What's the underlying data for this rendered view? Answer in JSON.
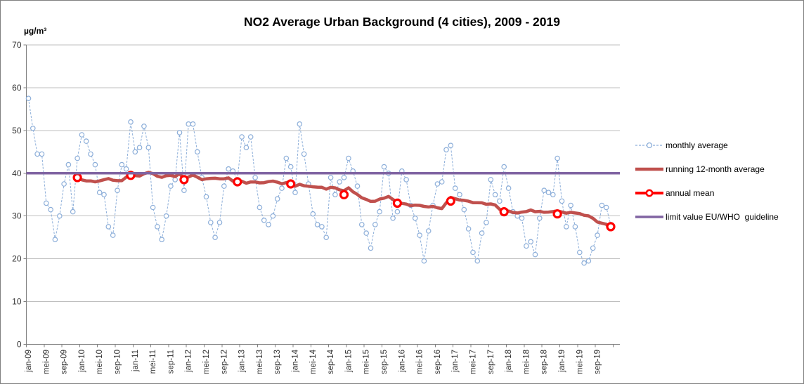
{
  "chart_data": {
    "type": "line",
    "title": "NO2 Average Urban Background (4 cities), 2009 - 2019",
    "y_axis_label": "µg/m³",
    "ylim": [
      0,
      70
    ],
    "yticks": [
      0,
      10,
      20,
      30,
      40,
      50,
      60,
      70
    ],
    "x_start": "jan-09",
    "x_end": "dec-19",
    "x_tick_labels": [
      "jan-09",
      "mei-09",
      "sep-09",
      "jan-10",
      "mei-10",
      "sep-10",
      "jan-11",
      "mei-11",
      "sep-11",
      "jan-12",
      "mei-12",
      "sep-12",
      "jan-13",
      "mei-13",
      "sep-13",
      "jan-14",
      "mei-14",
      "sep-14",
      "jan-15",
      "mei-15",
      "sep-15",
      "jan-16",
      "mei-16",
      "sep-16",
      "jan-17",
      "mei-17",
      "sep-17",
      "jan-18",
      "mei-18",
      "sep-18",
      "jan-19",
      "mei-19",
      "sep-19"
    ],
    "x_tick_every_months": 4,
    "grid": "horizontal",
    "legend_position": "right",
    "series": [
      {
        "name": "monthly average",
        "type": "line",
        "style": "dashed",
        "marker": "open-circle",
        "color": "#8CAED9",
        "values": [
          57.5,
          50.5,
          44.5,
          44.5,
          33,
          31.5,
          24.5,
          30,
          37.5,
          42,
          31,
          43.5,
          49,
          47.5,
          44.5,
          42,
          35.5,
          35,
          27.5,
          25.5,
          36,
          42,
          41,
          52,
          45,
          46,
          51,
          46,
          32,
          27.5,
          24.5,
          30,
          37,
          38.5,
          49.5,
          36,
          51.5,
          51.5,
          45,
          39,
          34.5,
          28.5,
          25,
          28.5,
          37,
          41,
          40.5,
          38.5,
          48.5,
          46,
          48.5,
          39,
          32,
          29,
          28,
          30,
          34,
          36.5,
          43.5,
          41.5,
          35.5,
          51.5,
          44.5,
          37.5,
          30.5,
          28,
          27.5,
          25,
          39,
          35,
          38,
          39,
          43.5,
          40.5,
          37,
          28,
          26,
          22.5,
          28,
          31,
          41.5,
          40,
          29.5,
          31,
          40.5,
          38.5,
          32.5,
          29.5,
          25.5,
          19.5,
          26.5,
          32.5,
          37.5,
          38,
          45.5,
          46.5,
          36.5,
          35,
          31.5,
          27,
          21.5,
          19.5,
          26,
          28.5,
          38.5,
          35,
          33.5,
          41.5,
          36.5,
          31,
          30,
          29.5,
          23,
          24,
          21,
          29.5,
          36,
          35.5,
          35,
          43.5,
          33.5,
          27.5,
          32.5,
          27.5,
          21.5,
          19,
          19.5,
          22.5,
          25.5,
          32.5,
          32,
          28
        ]
      },
      {
        "name": "running 12-month average",
        "type": "line",
        "style": "solid-thick",
        "marker": "none",
        "color": "#C0504D",
        "derived": "12-month running mean of the monthly average series, starting dec-09"
      },
      {
        "name": "annual mean",
        "type": "points",
        "marker": "open-circle-thick",
        "color": "#FF0000",
        "plotted_at": "december of each year",
        "years": [
          2009,
          2010,
          2011,
          2012,
          2013,
          2014,
          2015,
          2016,
          2017,
          2018,
          2019
        ],
        "values": [
          39,
          39.5,
          38.5,
          38,
          37.5,
          35,
          33,
          33.5,
          31,
          30.5,
          27.5
        ]
      },
      {
        "name": "limit value EU/WHO  guideline",
        "type": "hline",
        "style": "solid",
        "color": "#8064A2",
        "value": 40
      }
    ],
    "colors": {
      "gridline": "#BFBFBF",
      "axis": "#808080",
      "tick_text": "#333333",
      "background": "#FFFFFF"
    }
  }
}
